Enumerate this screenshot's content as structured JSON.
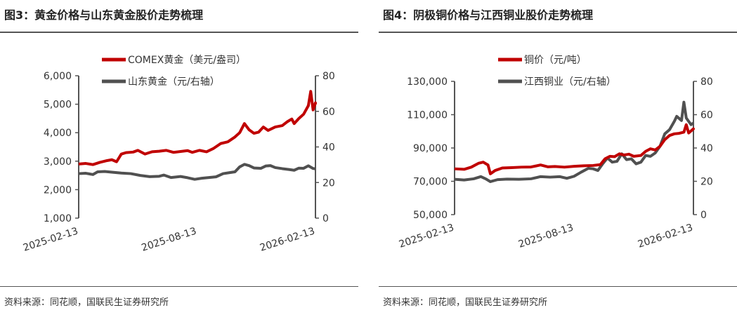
{
  "chart_data": [
    {
      "type": "line",
      "title": "图3：黄金价格与山东黄金股价走势梳理",
      "source": "资料来源：同花顺，国联民生证券研究所",
      "x_ticks": [
        "2025-02-13",
        "2025-08-13",
        "2026-02-13"
      ],
      "y_left": {
        "min": 1000,
        "max": 6000,
        "ticks": [
          "1,000",
          "2,000",
          "3,000",
          "4,000",
          "5,000",
          "6,000"
        ]
      },
      "y_right": {
        "min": 0,
        "max": 80,
        "ticks": [
          "0",
          "20",
          "40",
          "60",
          "80"
        ]
      },
      "legend": [
        "COMEX黄金（美元/盎司）",
        "山东黄金（元/右轴）"
      ],
      "series": [
        {
          "name": "COMEX黄金（美元/盎司）",
          "axis": "left",
          "color": "#c00000",
          "points": [
            [
              0,
              2900
            ],
            [
              0.03,
              2920
            ],
            [
              0.06,
              2880
            ],
            [
              0.09,
              2960
            ],
            [
              0.12,
              3020
            ],
            [
              0.14,
              3050
            ],
            [
              0.16,
              2980
            ],
            [
              0.18,
              3250
            ],
            [
              0.2,
              3300
            ],
            [
              0.23,
              3320
            ],
            [
              0.25,
              3380
            ],
            [
              0.28,
              3250
            ],
            [
              0.31,
              3330
            ],
            [
              0.34,
              3350
            ],
            [
              0.37,
              3380
            ],
            [
              0.4,
              3310
            ],
            [
              0.43,
              3340
            ],
            [
              0.46,
              3370
            ],
            [
              0.48,
              3310
            ],
            [
              0.51,
              3380
            ],
            [
              0.54,
              3330
            ],
            [
              0.57,
              3450
            ],
            [
              0.6,
              3620
            ],
            [
              0.63,
              3680
            ],
            [
              0.66,
              3850
            ],
            [
              0.68,
              4000
            ],
            [
              0.7,
              4320
            ],
            [
              0.72,
              4100
            ],
            [
              0.74,
              3980
            ],
            [
              0.76,
              4020
            ],
            [
              0.78,
              4200
            ],
            [
              0.8,
              4080
            ],
            [
              0.83,
              4200
            ],
            [
              0.86,
              4250
            ],
            [
              0.88,
              4380
            ],
            [
              0.9,
              4480
            ],
            [
              0.91,
              4320
            ],
            [
              0.93,
              4500
            ],
            [
              0.95,
              4650
            ],
            [
              0.97,
              4950
            ],
            [
              0.98,
              5450
            ],
            [
              0.99,
              4800
            ],
            [
              1.0,
              5050
            ],
            [
              1.01,
              5000
            ]
          ]
        },
        {
          "name": "山东黄金（元/右轴）",
          "axis": "right",
          "color": "#505050",
          "points": [
            [
              0,
              25
            ],
            [
              0.03,
              25.2
            ],
            [
              0.06,
              24.5
            ],
            [
              0.08,
              26
            ],
            [
              0.11,
              26.2
            ],
            [
              0.14,
              25.8
            ],
            [
              0.18,
              25.3
            ],
            [
              0.22,
              25
            ],
            [
              0.26,
              24
            ],
            [
              0.3,
              23.3
            ],
            [
              0.34,
              23.5
            ],
            [
              0.36,
              24.2
            ],
            [
              0.39,
              22.8
            ],
            [
              0.43,
              23.4
            ],
            [
              0.46,
              22.7
            ],
            [
              0.49,
              21.8
            ],
            [
              0.52,
              22.4
            ],
            [
              0.55,
              22.8
            ],
            [
              0.58,
              23.2
            ],
            [
              0.61,
              25
            ],
            [
              0.64,
              25.6
            ],
            [
              0.66,
              26
            ],
            [
              0.68,
              28.8
            ],
            [
              0.7,
              30.2
            ],
            [
              0.72,
              29.5
            ],
            [
              0.74,
              28.2
            ],
            [
              0.77,
              28
            ],
            [
              0.79,
              29.3
            ],
            [
              0.81,
              29.5
            ],
            [
              0.83,
              28.4
            ],
            [
              0.86,
              27.8
            ],
            [
              0.89,
              27.3
            ],
            [
              0.91,
              26.9
            ],
            [
              0.93,
              28.1
            ],
            [
              0.95,
              28
            ],
            [
              0.97,
              29.4
            ],
            [
              0.99,
              27.9
            ],
            [
              1.01,
              27.7
            ]
          ]
        }
      ]
    },
    {
      "type": "line",
      "title": "图4：阴极铜价格与江西铜业股价走势梳理",
      "source": "资料来源：同花顺，国联民生证券研究所",
      "x_ticks": [
        "2025-02-13",
        "2025-08-13",
        "2026-02-13"
      ],
      "y_left": {
        "min": 50000,
        "max": 130000,
        "ticks": [
          "50,000",
          "70,000",
          "90,000",
          "110,000",
          "130,000"
        ]
      },
      "y_right": {
        "min": 0,
        "max": 80,
        "ticks": [
          "0",
          "20",
          "40",
          "60",
          "80"
        ]
      },
      "legend": [
        "铜价（元/吨）",
        "江西铜业（元/右轴）"
      ],
      "series": [
        {
          "name": "铜价（元/吨）",
          "axis": "left",
          "color": "#c00000",
          "points": [
            [
              0,
              77500
            ],
            [
              0.04,
              77200
            ],
            [
              0.07,
              78500
            ],
            [
              0.1,
              80800
            ],
            [
              0.12,
              81500
            ],
            [
              0.14,
              79800
            ],
            [
              0.15,
              74500
            ],
            [
              0.17,
              76500
            ],
            [
              0.2,
              78000
            ],
            [
              0.24,
              78200
            ],
            [
              0.28,
              78500
            ],
            [
              0.32,
              78600
            ],
            [
              0.36,
              79800
            ],
            [
              0.39,
              78700
            ],
            [
              0.42,
              78900
            ],
            [
              0.46,
              78500
            ],
            [
              0.5,
              79000
            ],
            [
              0.54,
              79300
            ],
            [
              0.58,
              79500
            ],
            [
              0.61,
              80000
            ],
            [
              0.63,
              83500
            ],
            [
              0.65,
              85000
            ],
            [
              0.67,
              84800
            ],
            [
              0.69,
              86500
            ],
            [
              0.71,
              85800
            ],
            [
              0.73,
              86300
            ],
            [
              0.75,
              85000
            ],
            [
              0.78,
              85500
            ],
            [
              0.8,
              88000
            ],
            [
              0.82,
              89500
            ],
            [
              0.84,
              88800
            ],
            [
              0.86,
              91000
            ],
            [
              0.88,
              95000
            ],
            [
              0.9,
              97500
            ],
            [
              0.92,
              98500
            ],
            [
              0.94,
              98800
            ],
            [
              0.96,
              99500
            ],
            [
              0.97,
              104000
            ],
            [
              0.98,
              99000
            ],
            [
              1.0,
              101500
            ],
            [
              1.01,
              101000
            ]
          ]
        },
        {
          "name": "江西铜业（元/右轴）",
          "axis": "right",
          "color": "#505050",
          "points": [
            [
              0,
              21.2
            ],
            [
              0.04,
              20.8
            ],
            [
              0.08,
              21.5
            ],
            [
              0.11,
              22.8
            ],
            [
              0.13,
              21.5
            ],
            [
              0.15,
              19.8
            ],
            [
              0.18,
              21
            ],
            [
              0.22,
              21.3
            ],
            [
              0.27,
              21.2
            ],
            [
              0.32,
              21.5
            ],
            [
              0.36,
              22.8
            ],
            [
              0.4,
              22.5
            ],
            [
              0.44,
              22.8
            ],
            [
              0.47,
              21.8
            ],
            [
              0.5,
              23
            ],
            [
              0.53,
              25.5
            ],
            [
              0.56,
              27.8
            ],
            [
              0.58,
              27.5
            ],
            [
              0.6,
              26.5
            ],
            [
              0.62,
              30.5
            ],
            [
              0.64,
              34
            ],
            [
              0.66,
              31.5
            ],
            [
              0.68,
              32
            ],
            [
              0.7,
              36.5
            ],
            [
              0.72,
              33
            ],
            [
              0.74,
              33.5
            ],
            [
              0.76,
              30.5
            ],
            [
              0.78,
              31.5
            ],
            [
              0.8,
              35.5
            ],
            [
              0.82,
              35
            ],
            [
              0.84,
              37
            ],
            [
              0.86,
              41
            ],
            [
              0.88,
              48.5
            ],
            [
              0.9,
              51
            ],
            [
              0.92,
              56
            ],
            [
              0.93,
              59
            ],
            [
              0.95,
              56.5
            ],
            [
              0.96,
              67.5
            ],
            [
              0.97,
              58
            ],
            [
              0.99,
              54
            ],
            [
              1.01,
              55
            ]
          ]
        }
      ]
    }
  ]
}
